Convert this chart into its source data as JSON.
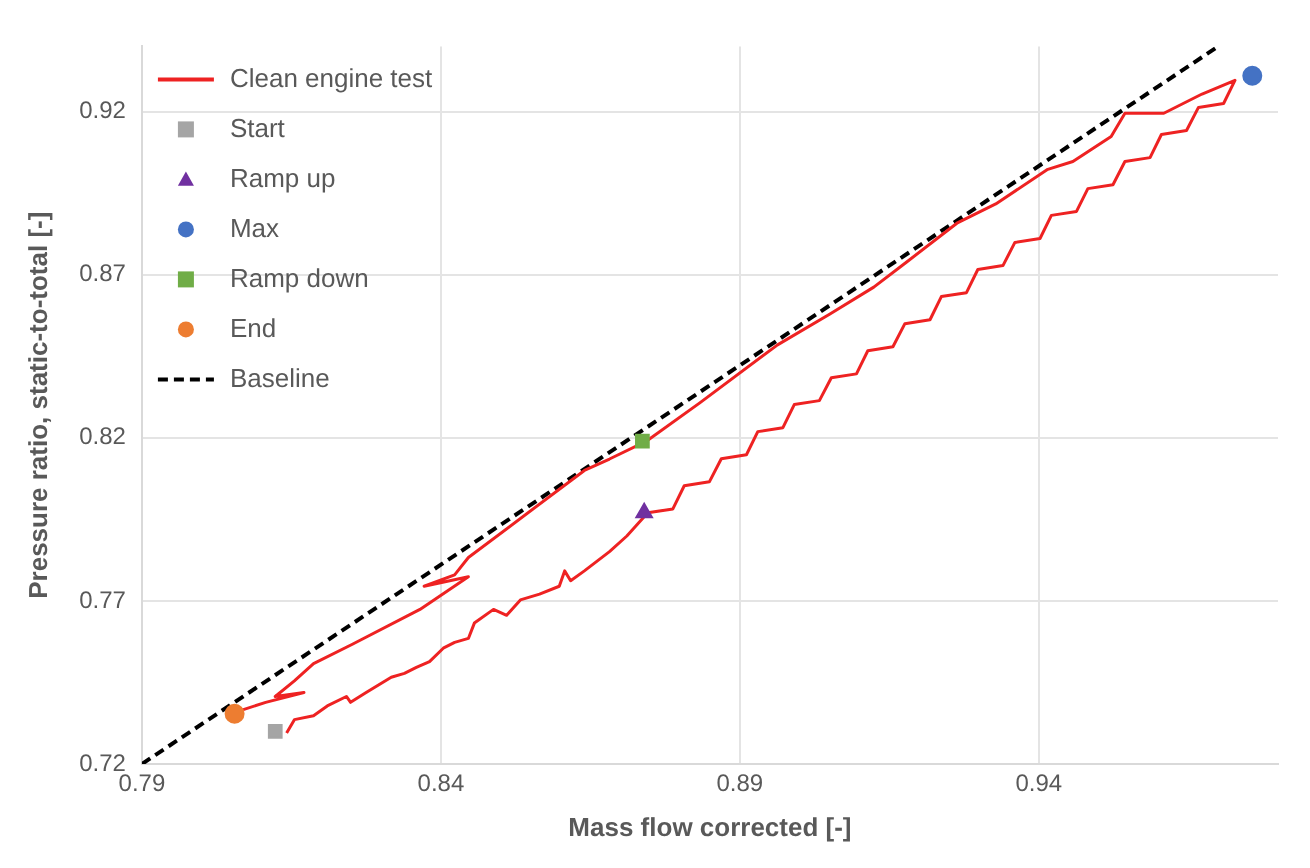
{
  "chart_data": {
    "type": "line",
    "xlabel": "Mass flow corrected [-]",
    "ylabel": "Pressure ratio, static-to-total [-]",
    "xlim": [
      0.79,
      0.98
    ],
    "xticks": [
      0.79,
      0.84,
      0.89,
      0.94
    ],
    "ylim": [
      0.72,
      0.94
    ],
    "yticks": [
      0.72,
      0.77,
      0.82,
      0.87,
      0.92
    ],
    "grid": true,
    "legend": "top left",
    "series": [
      {
        "name": "Clean engine test",
        "type": "line",
        "color": "#ee2222",
        "line_style": "solid",
        "marker": "none",
        "x": [
          0.8142,
          0.8155,
          0.8187,
          0.821,
          0.8242,
          0.8249,
          0.8275,
          0.8317,
          0.8339,
          0.8359,
          0.8381,
          0.8404,
          0.8423,
          0.8446,
          0.8456,
          0.8488,
          0.851,
          0.8533,
          0.8565,
          0.8598,
          0.8607,
          0.8617,
          0.864,
          0.8682,
          0.8711,
          0.8746,
          0.8788,
          0.8807,
          0.8849,
          0.8869,
          0.8911,
          0.893,
          0.8972,
          0.8991,
          0.9033,
          0.9053,
          0.9095,
          0.9114,
          0.9156,
          0.9176,
          0.9218,
          0.9237,
          0.9279,
          0.9298,
          0.934,
          0.936,
          0.9402,
          0.9421,
          0.9463,
          0.9482,
          0.9524,
          0.9544,
          0.9586,
          0.9605,
          0.9647,
          0.9667,
          0.9709,
          0.9728,
          0.9673,
          0.9609,
          0.9544,
          0.9521,
          0.9457,
          0.9415,
          0.9328,
          0.9263,
          0.9179,
          0.9124,
          0.905,
          0.8963,
          0.8833,
          0.8743,
          0.8682,
          0.864,
          0.8446,
          0.8423,
          0.8372,
          0.8446,
          0.8365,
          0.8252,
          0.8187,
          0.8155,
          0.8123,
          0.8171,
          0.8107,
          0.8058
        ],
        "values": [
          0.7295,
          0.7336,
          0.7348,
          0.7378,
          0.7407,
          0.7389,
          0.7419,
          0.7466,
          0.7478,
          0.7496,
          0.7514,
          0.7555,
          0.7573,
          0.7585,
          0.7632,
          0.7674,
          0.7656,
          0.7703,
          0.7721,
          0.7745,
          0.7792,
          0.7762,
          0.7792,
          0.7851,
          0.7899,
          0.797,
          0.7982,
          0.8053,
          0.8065,
          0.8136,
          0.8148,
          0.8219,
          0.8231,
          0.8302,
          0.8314,
          0.8384,
          0.8396,
          0.8467,
          0.8479,
          0.855,
          0.8562,
          0.8633,
          0.8645,
          0.8716,
          0.8728,
          0.8799,
          0.8811,
          0.8882,
          0.8894,
          0.8964,
          0.8976,
          0.9047,
          0.9059,
          0.913,
          0.9142,
          0.9213,
          0.9225,
          0.9296,
          0.9254,
          0.9195,
          0.9195,
          0.9124,
          0.9047,
          0.9023,
          0.8917,
          0.8858,
          0.8739,
          0.8662,
          0.8579,
          0.8485,
          0.8307,
          0.8189,
          0.8135,
          0.81,
          0.7833,
          0.778,
          0.7745,
          0.7774,
          0.7674,
          0.7567,
          0.7508,
          0.7455,
          0.7407,
          0.7419,
          0.7389,
          0.736
        ]
      },
      {
        "name": "Start",
        "type": "scatter",
        "color": "#a5a5a5",
        "marker": "square",
        "x": [
          0.8123
        ],
        "values": [
          0.73
        ]
      },
      {
        "name": "Ramp up",
        "type": "scatter",
        "color": "#7030a0",
        "marker": "triangle",
        "x": [
          0.874
        ],
        "values": [
          0.797
        ]
      },
      {
        "name": "Max",
        "type": "scatter",
        "color": "#4472c4",
        "marker": "circle",
        "x": [
          0.9757
        ],
        "values": [
          0.931
        ]
      },
      {
        "name": "Ramp down",
        "type": "scatter",
        "color": "#70ad47",
        "marker": "square",
        "x": [
          0.8737
        ],
        "values": [
          0.819
        ]
      },
      {
        "name": "End",
        "type": "scatter",
        "color": "#ed7d31",
        "marker": "circle",
        "x": [
          0.8055
        ],
        "values": [
          0.7354
        ]
      },
      {
        "name": "Baseline",
        "type": "line",
        "color": "#000000",
        "line_style": "dashed",
        "marker": "none",
        "x": [
          0.79,
          0.97
        ],
        "values": [
          0.72,
          0.94
        ]
      }
    ]
  }
}
